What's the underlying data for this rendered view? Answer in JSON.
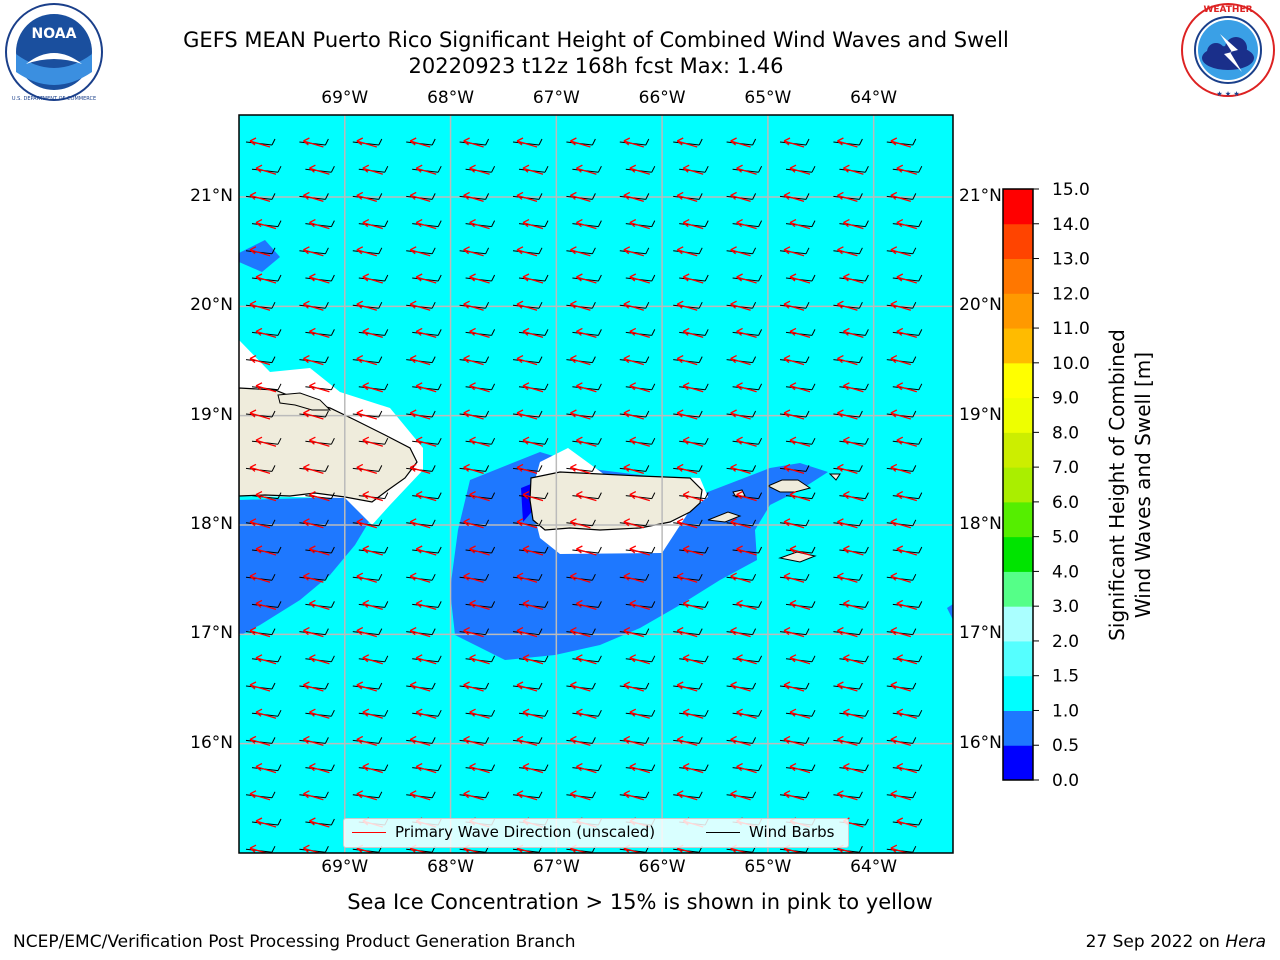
{
  "title": {
    "line1": "GEFS MEAN Puerto Rico Significant Height of Combined Wind Waves and Swell",
    "line2": "20220923 t12z 168h fcst   Max: 1.46"
  },
  "logos": {
    "noaa": {
      "icon": "noaa-logo",
      "text": "NOAA",
      "ring_text": "NATIONAL OCEANIC AND ATMOSPHERIC ADMINISTRATION · U.S. DEPARTMENT OF COMMERCE"
    },
    "nws": {
      "icon": "nws-logo",
      "ring_text": "NATIONAL WEATHER SERVICE"
    }
  },
  "map": {
    "lon_labels": [
      "69°W",
      "68°W",
      "67°W",
      "66°W",
      "65°W",
      "64°W"
    ],
    "lat_labels": [
      "21°N",
      "20°N",
      "19°N",
      "18°N",
      "17°N",
      "16°N"
    ],
    "lon_range": [
      -70.0,
      -63.25
    ],
    "lat_range": [
      15.0,
      21.75
    ],
    "ocean_color": "#00ffff",
    "land_color": "#efecdc",
    "grid": true,
    "legend": {
      "placement": "bottom-center",
      "items": [
        {
          "label": "Primary Wave Direction (unscaled)",
          "color": "#ff0000"
        },
        {
          "label": "Wind Barbs",
          "color": "#000000"
        }
      ]
    },
    "wave_direction_deg": 110,
    "wind_barbs": "easterly ~10 kt"
  },
  "colorbar": {
    "title_line1": "Significant Height of Combined",
    "title_line2": "Wind Waves and Swell [m]",
    "ticks": [
      "0.0",
      "0.5",
      "1.0",
      "1.5",
      "2.0",
      "3.0",
      "4.0",
      "5.0",
      "6.0",
      "7.0",
      "8.0",
      "9.0",
      "10.0",
      "11.0",
      "12.0",
      "13.0",
      "14.0",
      "15.0"
    ],
    "levels": [
      {
        "range": "0.0-0.5",
        "color": "#0000ff"
      },
      {
        "range": "0.5-1.0",
        "color": "#1e78ff"
      },
      {
        "range": "1.0-1.5",
        "color": "#00ffff"
      },
      {
        "range": "1.5-2.0",
        "color": "#55ffff"
      },
      {
        "range": "2.0-3.0",
        "color": "#aaffff"
      },
      {
        "range": "3.0-4.0",
        "color": "#55ff88"
      },
      {
        "range": "4.0-5.0",
        "color": "#00e400"
      },
      {
        "range": "5.0-6.0",
        "color": "#55ee00"
      },
      {
        "range": "6.0-7.0",
        "color": "#aaee00"
      },
      {
        "range": "7.0-8.0",
        "color": "#ccee00"
      },
      {
        "range": "8.0-9.0",
        "color": "#eeff00"
      },
      {
        "range": "9.0-10.0",
        "color": "#ffff00"
      },
      {
        "range": "10.0-11.0",
        "color": "#ffbb00"
      },
      {
        "range": "11.0-12.0",
        "color": "#ff9900"
      },
      {
        "range": "12.0-13.0",
        "color": "#ff7700"
      },
      {
        "range": "13.0-14.0",
        "color": "#ff4400"
      },
      {
        "range": "14.0-15.0",
        "color": "#ff0000"
      }
    ]
  },
  "footnote": "Sea Ice Concentration > 15% is shown in pink to yellow",
  "footer": {
    "left": "NCEP/EMC/Verification Post Processing Product Generation Branch",
    "right_prefix": "27 Sep 2022 on ",
    "right_host": "Hera"
  }
}
